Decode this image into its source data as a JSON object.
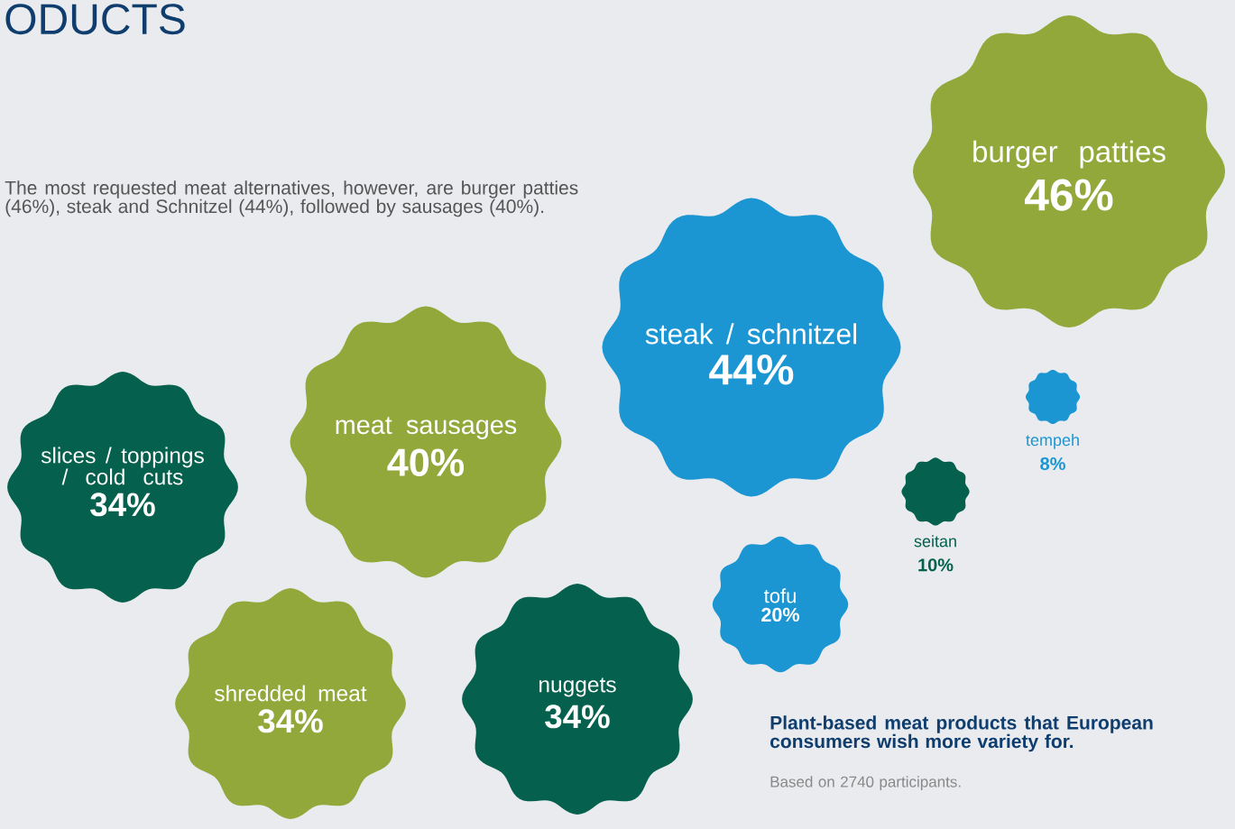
{
  "chart_data": {
    "type": "other",
    "title": "ODUCTS",
    "categories": [
      "burger patties",
      "steak / schnitzel",
      "meat sausages",
      "slices / toppings / cold cuts",
      "shredded meat",
      "nuggets",
      "tofu",
      "seitan",
      "tempeh"
    ],
    "values": [
      46,
      44,
      40,
      34,
      34,
      34,
      20,
      10,
      8
    ],
    "value_labels": [
      "46%",
      "44%",
      "40%",
      "34%",
      "34%",
      "34%",
      "20%",
      "10%",
      "8%"
    ],
    "colors": [
      "#93a83b",
      "#1b96d2",
      "#93a83b",
      "#05614e",
      "#93a83b",
      "#05614e",
      "#1b96d2",
      "#05614e",
      "#1b96d2"
    ],
    "annotations": [
      "The most requested meat alternatives, however, are burger patties (46%), steak and Schnitzel (44%), followed by sausages (40%).",
      "Plant-based meat products that European consumers wish more variety for.",
      "Based on 2740 participants."
    ]
  }
}
